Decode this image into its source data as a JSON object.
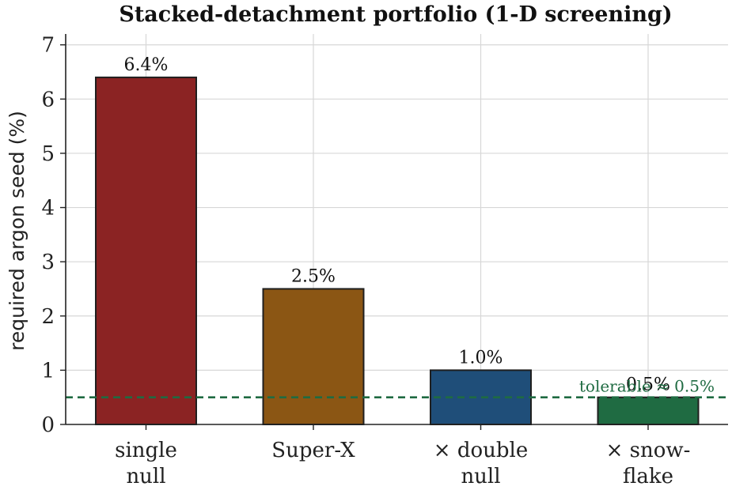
{
  "chart_data": {
    "type": "bar",
    "title": "Stacked-detachment portfolio (1-D screening)",
    "xlabel": "",
    "ylabel": "required argon seed (%)",
    "ylim": [
      0,
      7.2
    ],
    "yticks": [
      "0",
      "1",
      "2",
      "3",
      "4",
      "5",
      "6",
      "7"
    ],
    "grid": true,
    "categories": [
      [
        "single",
        "null"
      ],
      [
        "Super-X"
      ],
      [
        "× double",
        "null"
      ],
      [
        "× snow-",
        "flake"
      ]
    ],
    "values": [
      6.4,
      2.5,
      1.0,
      0.5
    ],
    "value_labels": [
      "6.4%",
      "2.5%",
      "1.0%",
      "0.5%"
    ],
    "bar_colors": [
      "#8b2323",
      "#8b5614",
      "#1f4e79",
      "#1f6b42"
    ],
    "threshold": {
      "value": 0.5,
      "label": "tolerable ≈ 0.5%",
      "color": "#1f6b42",
      "style": "dashed"
    }
  }
}
